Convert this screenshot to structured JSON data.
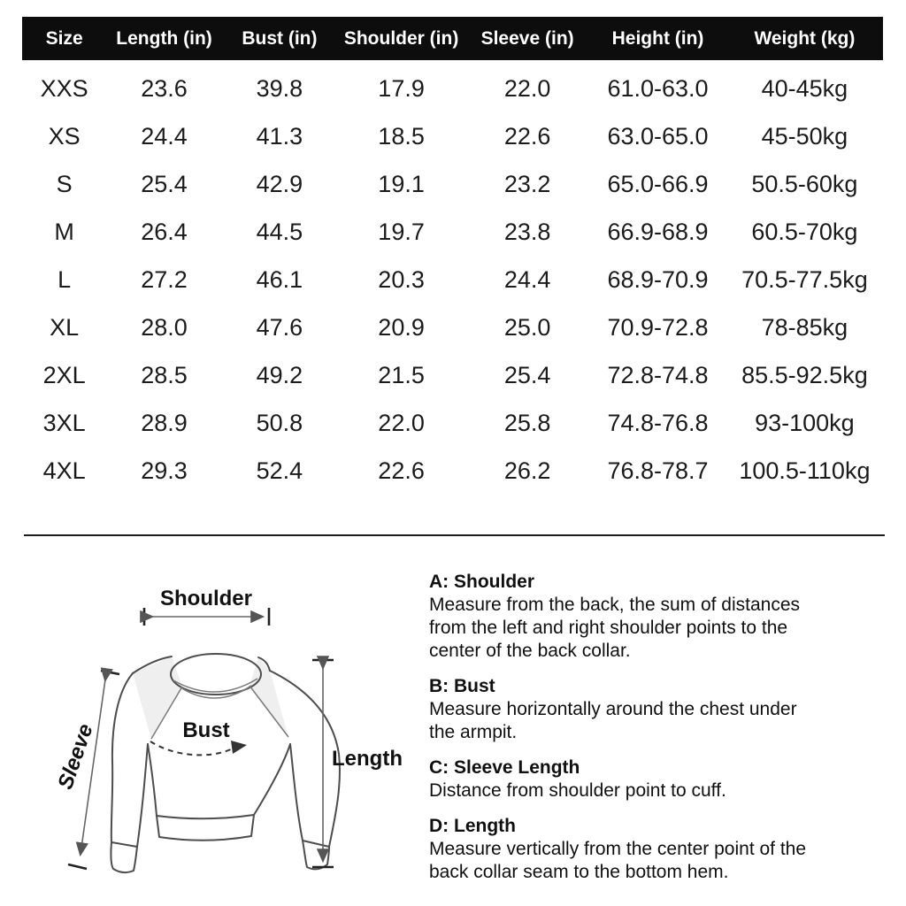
{
  "size_table": {
    "header_bg": "#0d0d0d",
    "header_text_color": "#ffffff",
    "columns": [
      "Size",
      "Length (in)",
      "Bust (in)",
      "Shoulder (in)",
      "Sleeve (in)",
      "Height (in)",
      "Weight (kg)"
    ],
    "rows": [
      [
        "XXS",
        "23.6",
        "39.8",
        "17.9",
        "22.0",
        "61.0-63.0",
        "40-45kg"
      ],
      [
        "XS",
        "24.4",
        "41.3",
        "18.5",
        "22.6",
        "63.0-65.0",
        "45-50kg"
      ],
      [
        "S",
        "25.4",
        "42.9",
        "19.1",
        "23.2",
        "65.0-66.9",
        "50.5-60kg"
      ],
      [
        "M",
        "26.4",
        "44.5",
        "19.7",
        "23.8",
        "66.9-68.9",
        "60.5-70kg"
      ],
      [
        "L",
        "27.2",
        "46.1",
        "20.3",
        "24.4",
        "68.9-70.9",
        "70.5-77.5kg"
      ],
      [
        "XL",
        "28.0",
        "47.6",
        "20.9",
        "25.0",
        "70.9-72.8",
        "78-85kg"
      ],
      [
        "2XL",
        "28.5",
        "49.2",
        "21.5",
        "25.4",
        "72.8-74.8",
        "85.5-92.5kg"
      ],
      [
        "3XL",
        "28.9",
        "50.8",
        "22.0",
        "25.8",
        "74.8-76.8",
        "93-100kg"
      ],
      [
        "4XL",
        "29.3",
        "52.4",
        "22.6",
        "26.2",
        "76.8-78.7",
        "100.5-110kg"
      ]
    ]
  },
  "diagram": {
    "labels": {
      "shoulder": "Shoulder",
      "sleeve": "Sleeve",
      "bust": "Bust",
      "length": "Length"
    }
  },
  "instructions": [
    {
      "title": "A: Shoulder",
      "lines": [
        "Measure from the back, the sum of distances",
        "from the left and right shoulder points to the",
        "center of the back collar."
      ]
    },
    {
      "title": "B: Bust",
      "lines": [
        "Measure horizontally around the chest under",
        "the armpit."
      ]
    },
    {
      "title": "C: Sleeve Length",
      "lines": [
        "Distance from shoulder point to cuff."
      ]
    },
    {
      "title": "D: Length",
      "lines": [
        "Measure vertically from the center point of the",
        "back collar seam to the bottom hem."
      ]
    }
  ]
}
